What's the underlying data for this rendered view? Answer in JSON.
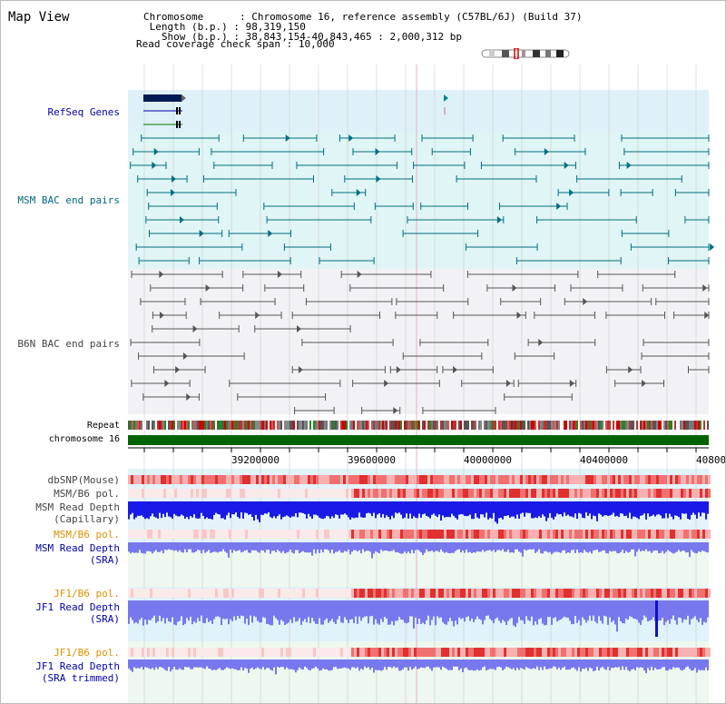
{
  "page": {
    "title": "Map View"
  },
  "header": {
    "lines": [
      {
        "key": "Chromosome",
        "sep": ":",
        "value": "Chromosome 16, reference assembly (C57BL/6J) (Build 37)"
      },
      {
        "key": "Length (b.p.)",
        "sep": ":",
        "value": "98,319,150"
      },
      {
        "key": "Show (b.p.)",
        "sep": ":",
        "value": "38,843,154-40,843,465 : 2,000,312 bp"
      },
      {
        "key": "Read coverage check span",
        "sep": ":",
        "value": "10,000"
      }
    ]
  },
  "tracks": {
    "refseq": {
      "label": "RefSeq Genes",
      "color": "#0000aa"
    },
    "msm_bac": {
      "label": "MSM BAC end pairs",
      "color": "#006680"
    },
    "b6n_bac": {
      "label": "B6N BAC end pairs",
      "color": "#444444"
    },
    "repeat": {
      "label": "Repeat"
    },
    "chromosome": {
      "label": "chromosome 16"
    },
    "dbsnp": {
      "label": "dbSNP(Mouse)",
      "color": "#444444"
    },
    "msm_b6_pol_cap": {
      "label": "MSM/B6 pol.",
      "color": "#444444"
    },
    "msm_read_depth_cap": {
      "label": "MSM Read Depth",
      "sub": "(Capillary)",
      "color": "#444444"
    },
    "msm_b6_pol_sra": {
      "label": "MSM/B6 pol.",
      "color": "#e09000"
    },
    "msm_read_depth_sra": {
      "label": "MSM Read Depth",
      "sub": "(SRA)",
      "color": "#0000aa"
    },
    "jf1_b6_pol": {
      "label": "JF1/B6 pol.",
      "color": "#e09000"
    },
    "jf1_read_depth": {
      "label": "JF1 Read Depth",
      "sub": "(SRA)",
      "color": "#0000aa"
    },
    "jf1_b6_pol_trim": {
      "label": "JF1/B6 pol.",
      "color": "#e09000"
    },
    "jf1_read_depth_trim": {
      "label": "JF1 Read Depth",
      "sub": "(SRA trimmed)",
      "color": "#0000aa"
    }
  },
  "axis": {
    "ticks": [
      "39200000",
      "39600000",
      "40000000",
      "40400000",
      "40800"
    ]
  },
  "colors": {
    "track_bg": "#dff1f8",
    "bac_bg": "#e0f5f5",
    "b6n_bg": "#f2f2f6",
    "chrom_green": "#006400",
    "snp_red": "#f08080",
    "depth_blue": "#1a1ae6",
    "depth_light": "#7878ee",
    "grid": "#cccccc"
  }
}
